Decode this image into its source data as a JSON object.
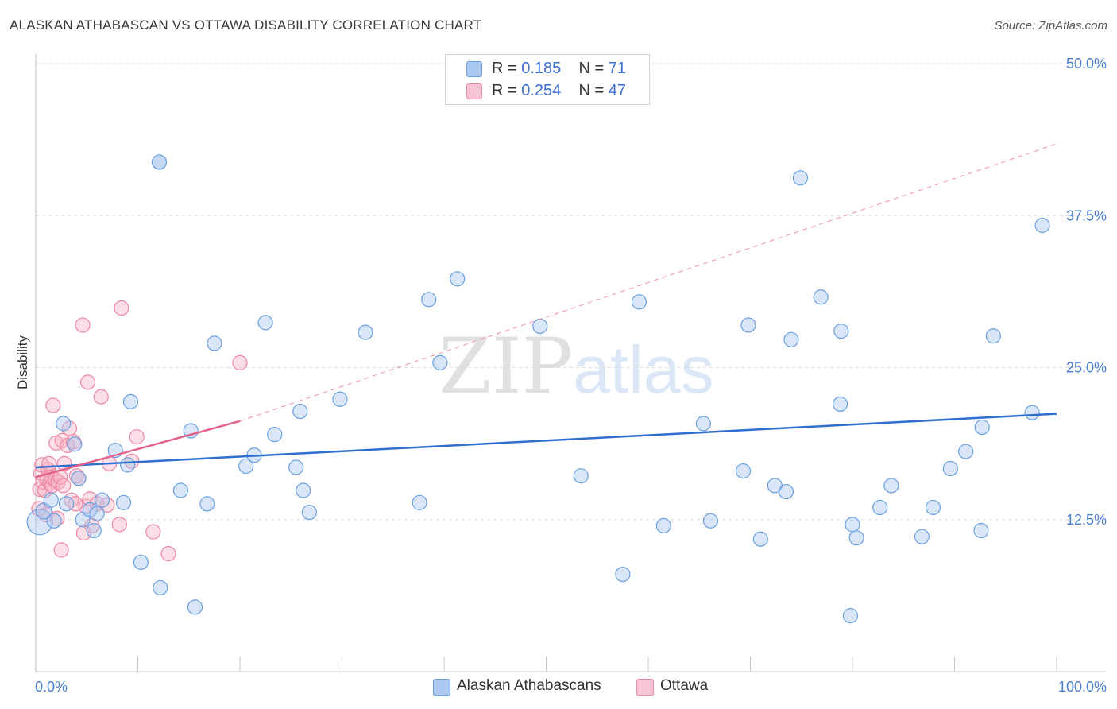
{
  "title": "ALASKAN ATHABASCAN VS OTTAWA DISABILITY CORRELATION CHART",
  "source": "Source: ZipAtlas.com",
  "watermark": {
    "zip": "ZIP",
    "atlas": "atlas"
  },
  "legend": [
    {
      "r_label": "R =",
      "r_value": "0.185",
      "n_label": "N =",
      "n_value": "71"
    },
    {
      "r_label": "R =",
      "r_value": "0.254",
      "n_label": "N =",
      "n_value": "47"
    }
  ],
  "bottom_legend": [
    {
      "label": "Alaskan Athabascans"
    },
    {
      "label": "Ottawa"
    }
  ],
  "colors": {
    "blue_fill": "#aac8f0",
    "blue_stroke": "#6a9fe0",
    "blue_line": "#2f6fd0",
    "pink_fill": "#f7b6c8",
    "pink_stroke": "#ec86a4",
    "pink_line": "#e5628c",
    "grid": "#dcdcdc",
    "tick_text": "#4a7fcf"
  },
  "chart_data": {
    "type": "scatter",
    "title": "ALASKAN ATHABASCAN VS OTTAWA DISABILITY CORRELATION CHART",
    "xlabel": "",
    "ylabel": "Disability",
    "xlim": [
      0,
      100
    ],
    "ylim": [
      0,
      50
    ],
    "x_tick_labels": [
      "0.0%",
      "100.0%"
    ],
    "y_tick_labels": [
      "12.5%",
      "25.0%",
      "37.5%",
      "50.0%"
    ],
    "y_tick_values": [
      12.5,
      25.0,
      37.5,
      50.0
    ],
    "legend_position": "top-center",
    "series": [
      {
        "name": "Alaskan Athabascans",
        "R": 0.185,
        "N": 71,
        "trend": {
          "x": [
            0,
            100
          ],
          "y": [
            16.8,
            21.2
          ],
          "style": "solid"
        },
        "points": [
          [
            0.4,
            12.3,
            16
          ],
          [
            0.8,
            13.2,
            10
          ],
          [
            1.5,
            14.1,
            9
          ],
          [
            1.8,
            12.4,
            9
          ],
          [
            2.7,
            20.4,
            9
          ],
          [
            3.0,
            13.8,
            9
          ],
          [
            3.8,
            18.7,
            9
          ],
          [
            4.2,
            15.9,
            9
          ],
          [
            4.6,
            12.5,
            9
          ],
          [
            5.3,
            13.3,
            9
          ],
          [
            5.7,
            11.6,
            9
          ],
          [
            6.0,
            13.0,
            9
          ],
          [
            6.5,
            14.1,
            9
          ],
          [
            7.8,
            18.2,
            9
          ],
          [
            8.6,
            13.9,
            9
          ],
          [
            9.0,
            17.0,
            9
          ],
          [
            9.3,
            22.2,
            9
          ],
          [
            10.3,
            9.0,
            9
          ],
          [
            12.1,
            41.9,
            9
          ],
          [
            12.2,
            6.9,
            9
          ],
          [
            14.2,
            14.9,
            9
          ],
          [
            15.2,
            19.8,
            9
          ],
          [
            15.6,
            5.3,
            9
          ],
          [
            16.8,
            13.8,
            9
          ],
          [
            17.5,
            27.0,
            9
          ],
          [
            20.6,
            16.9,
            9
          ],
          [
            21.4,
            17.8,
            9
          ],
          [
            22.5,
            28.7,
            9
          ],
          [
            23.4,
            19.5,
            9
          ],
          [
            25.5,
            16.8,
            9
          ],
          [
            25.9,
            21.4,
            9
          ],
          [
            26.2,
            14.9,
            9
          ],
          [
            26.8,
            13.1,
            9
          ],
          [
            29.8,
            22.4,
            9
          ],
          [
            32.3,
            27.9,
            9
          ],
          [
            37.6,
            13.9,
            9
          ],
          [
            38.5,
            30.6,
            9
          ],
          [
            39.6,
            25.4,
            9
          ],
          [
            41.3,
            32.3,
            9
          ],
          [
            49.4,
            28.4,
            9
          ],
          [
            53.4,
            16.1,
            9
          ],
          [
            57.5,
            8.0,
            9
          ],
          [
            59.1,
            30.4,
            9
          ],
          [
            61.5,
            12.0,
            9
          ],
          [
            65.4,
            20.4,
            9
          ],
          [
            66.1,
            12.4,
            9
          ],
          [
            69.3,
            16.5,
            9
          ],
          [
            69.8,
            28.5,
            9
          ],
          [
            71.0,
            10.9,
            9
          ],
          [
            72.4,
            15.3,
            9
          ],
          [
            73.5,
            14.8,
            9
          ],
          [
            74.0,
            27.3,
            9
          ],
          [
            74.9,
            40.6,
            9
          ],
          [
            76.9,
            30.8,
            9
          ],
          [
            78.8,
            22.0,
            9
          ],
          [
            78.9,
            28.0,
            9
          ],
          [
            80.0,
            12.1,
            9
          ],
          [
            80.4,
            11.0,
            9
          ],
          [
            79.8,
            4.6,
            9
          ],
          [
            82.7,
            13.5,
            9
          ],
          [
            83.8,
            15.3,
            9
          ],
          [
            86.8,
            11.1,
            9
          ],
          [
            87.9,
            13.5,
            9
          ],
          [
            89.6,
            16.7,
            9
          ],
          [
            91.1,
            18.1,
            9
          ],
          [
            92.6,
            11.6,
            9
          ],
          [
            92.7,
            20.1,
            9
          ],
          [
            93.8,
            27.6,
            9
          ],
          [
            97.6,
            21.3,
            9
          ],
          [
            98.6,
            36.7,
            9
          ],
          [
            12.1,
            41.9,
            9
          ]
        ]
      },
      {
        "name": "Ottawa",
        "R": 0.254,
        "N": 47,
        "trend": {
          "x": [
            0,
            20
          ],
          "y": [
            16.0,
            20.6
          ],
          "style": "solid",
          "extended": {
            "x": [
              20,
              100
            ],
            "y": [
              20.6,
              43.4
            ],
            "style": "dashed"
          }
        },
        "points": [
          [
            0.3,
            13.4,
            9
          ],
          [
            0.4,
            15.0,
            9
          ],
          [
            0.5,
            16.3,
            9
          ],
          [
            0.6,
            17.0,
            9
          ],
          [
            0.7,
            15.6,
            9
          ],
          [
            0.9,
            14.9,
            9
          ],
          [
            1.0,
            12.9,
            9
          ],
          [
            1.1,
            15.8,
            9
          ],
          [
            1.2,
            16.6,
            9
          ],
          [
            1.3,
            17.1,
            9
          ],
          [
            1.4,
            15.5,
            9
          ],
          [
            1.5,
            16.0,
            9
          ],
          [
            1.6,
            15.3,
            9
          ],
          [
            1.7,
            21.9,
            9
          ],
          [
            1.9,
            15.8,
            9
          ],
          [
            2.0,
            18.8,
            9
          ],
          [
            2.1,
            12.6,
            9
          ],
          [
            2.2,
            15.6,
            9
          ],
          [
            2.4,
            16.0,
            9
          ],
          [
            2.5,
            10.0,
            9
          ],
          [
            2.6,
            19.0,
            9
          ],
          [
            2.7,
            15.3,
            9
          ],
          [
            2.8,
            17.1,
            9
          ],
          [
            3.1,
            18.6,
            9
          ],
          [
            3.3,
            20.0,
            9
          ],
          [
            3.5,
            14.1,
            9
          ],
          [
            3.7,
            18.9,
            9
          ],
          [
            4.0,
            16.1,
            9
          ],
          [
            4.2,
            15.9,
            9
          ],
          [
            4.6,
            28.5,
            9
          ],
          [
            4.7,
            11.4,
            9
          ],
          [
            4.9,
            13.6,
            9
          ],
          [
            5.1,
            23.8,
            9
          ],
          [
            5.3,
            14.2,
            9
          ],
          [
            5.5,
            12.0,
            9
          ],
          [
            6.0,
            13.8,
            9
          ],
          [
            6.4,
            22.6,
            9
          ],
          [
            7.0,
            13.7,
            9
          ],
          [
            7.2,
            17.1,
            9
          ],
          [
            8.2,
            12.1,
            9
          ],
          [
            8.4,
            29.9,
            9
          ],
          [
            9.4,
            17.3,
            9
          ],
          [
            9.9,
            19.3,
            9
          ],
          [
            11.5,
            11.5,
            9
          ],
          [
            13.0,
            9.7,
            9
          ],
          [
            20.0,
            25.4,
            9
          ],
          [
            3.9,
            13.8,
            9
          ]
        ]
      }
    ]
  }
}
